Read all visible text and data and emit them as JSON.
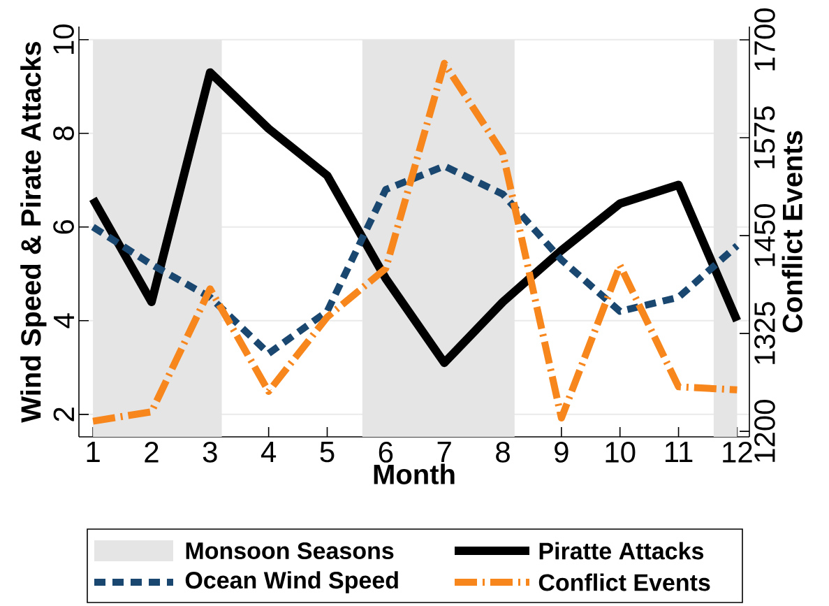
{
  "chart_data": {
    "type": "line",
    "xlabel": "Month",
    "ylabel": "Wind Speed & Pirate Attacks",
    "y2label": "Conflict Events",
    "x": [
      1,
      2,
      3,
      4,
      5,
      6,
      7,
      8,
      9,
      10,
      11,
      12
    ],
    "xlim": [
      0.76,
      12.21
    ],
    "xticks": [
      1,
      2,
      3,
      4,
      5,
      6,
      7,
      8,
      9,
      10,
      11,
      12
    ],
    "ylim": [
      1.52,
      10.28
    ],
    "yticks": [
      2,
      4,
      6,
      8,
      10
    ],
    "y2lim": [
      1193,
      1717
    ],
    "y2ticks": [
      1200,
      1325,
      1450,
      1575,
      1700
    ],
    "grid": "y",
    "legend": "bottom",
    "bands": [
      {
        "axis": "x",
        "from": 1,
        "to": 3.2,
        "label": "Monsoon Seasons",
        "color": "#e5e5e5"
      },
      {
        "axis": "x",
        "from": 5.6,
        "to": 8.2,
        "color": "#e5e5e5"
      },
      {
        "axis": "x",
        "from": 11.6,
        "to": 12,
        "color": "#e5e5e5"
      }
    ],
    "series": [
      {
        "name": "Piratte Attacks",
        "color": "#000000",
        "line_style": "solid",
        "values": [
          6.6,
          4.4,
          9.3,
          8.1,
          7.1,
          4.9,
          3.1,
          4.4,
          5.5,
          6.5,
          6.9,
          4.0
        ]
      },
      {
        "name": "Ocean Wind Speed",
        "color": "#1a476f",
        "line_style": "dotted",
        "values": [
          6.0,
          5.2,
          4.5,
          3.3,
          4.2,
          6.8,
          7.3,
          6.7,
          5.3,
          4.2,
          4.5,
          5.6
        ]
      },
      {
        "name": "Conflict Events",
        "color": "#f7861c",
        "line_style": "dashed",
        "axis": "y2",
        "values": [
          1213,
          1225,
          1382,
          1251,
          1346,
          1408,
          1670,
          1555,
          1217,
          1412,
          1257,
          1253
        ]
      }
    ]
  }
}
